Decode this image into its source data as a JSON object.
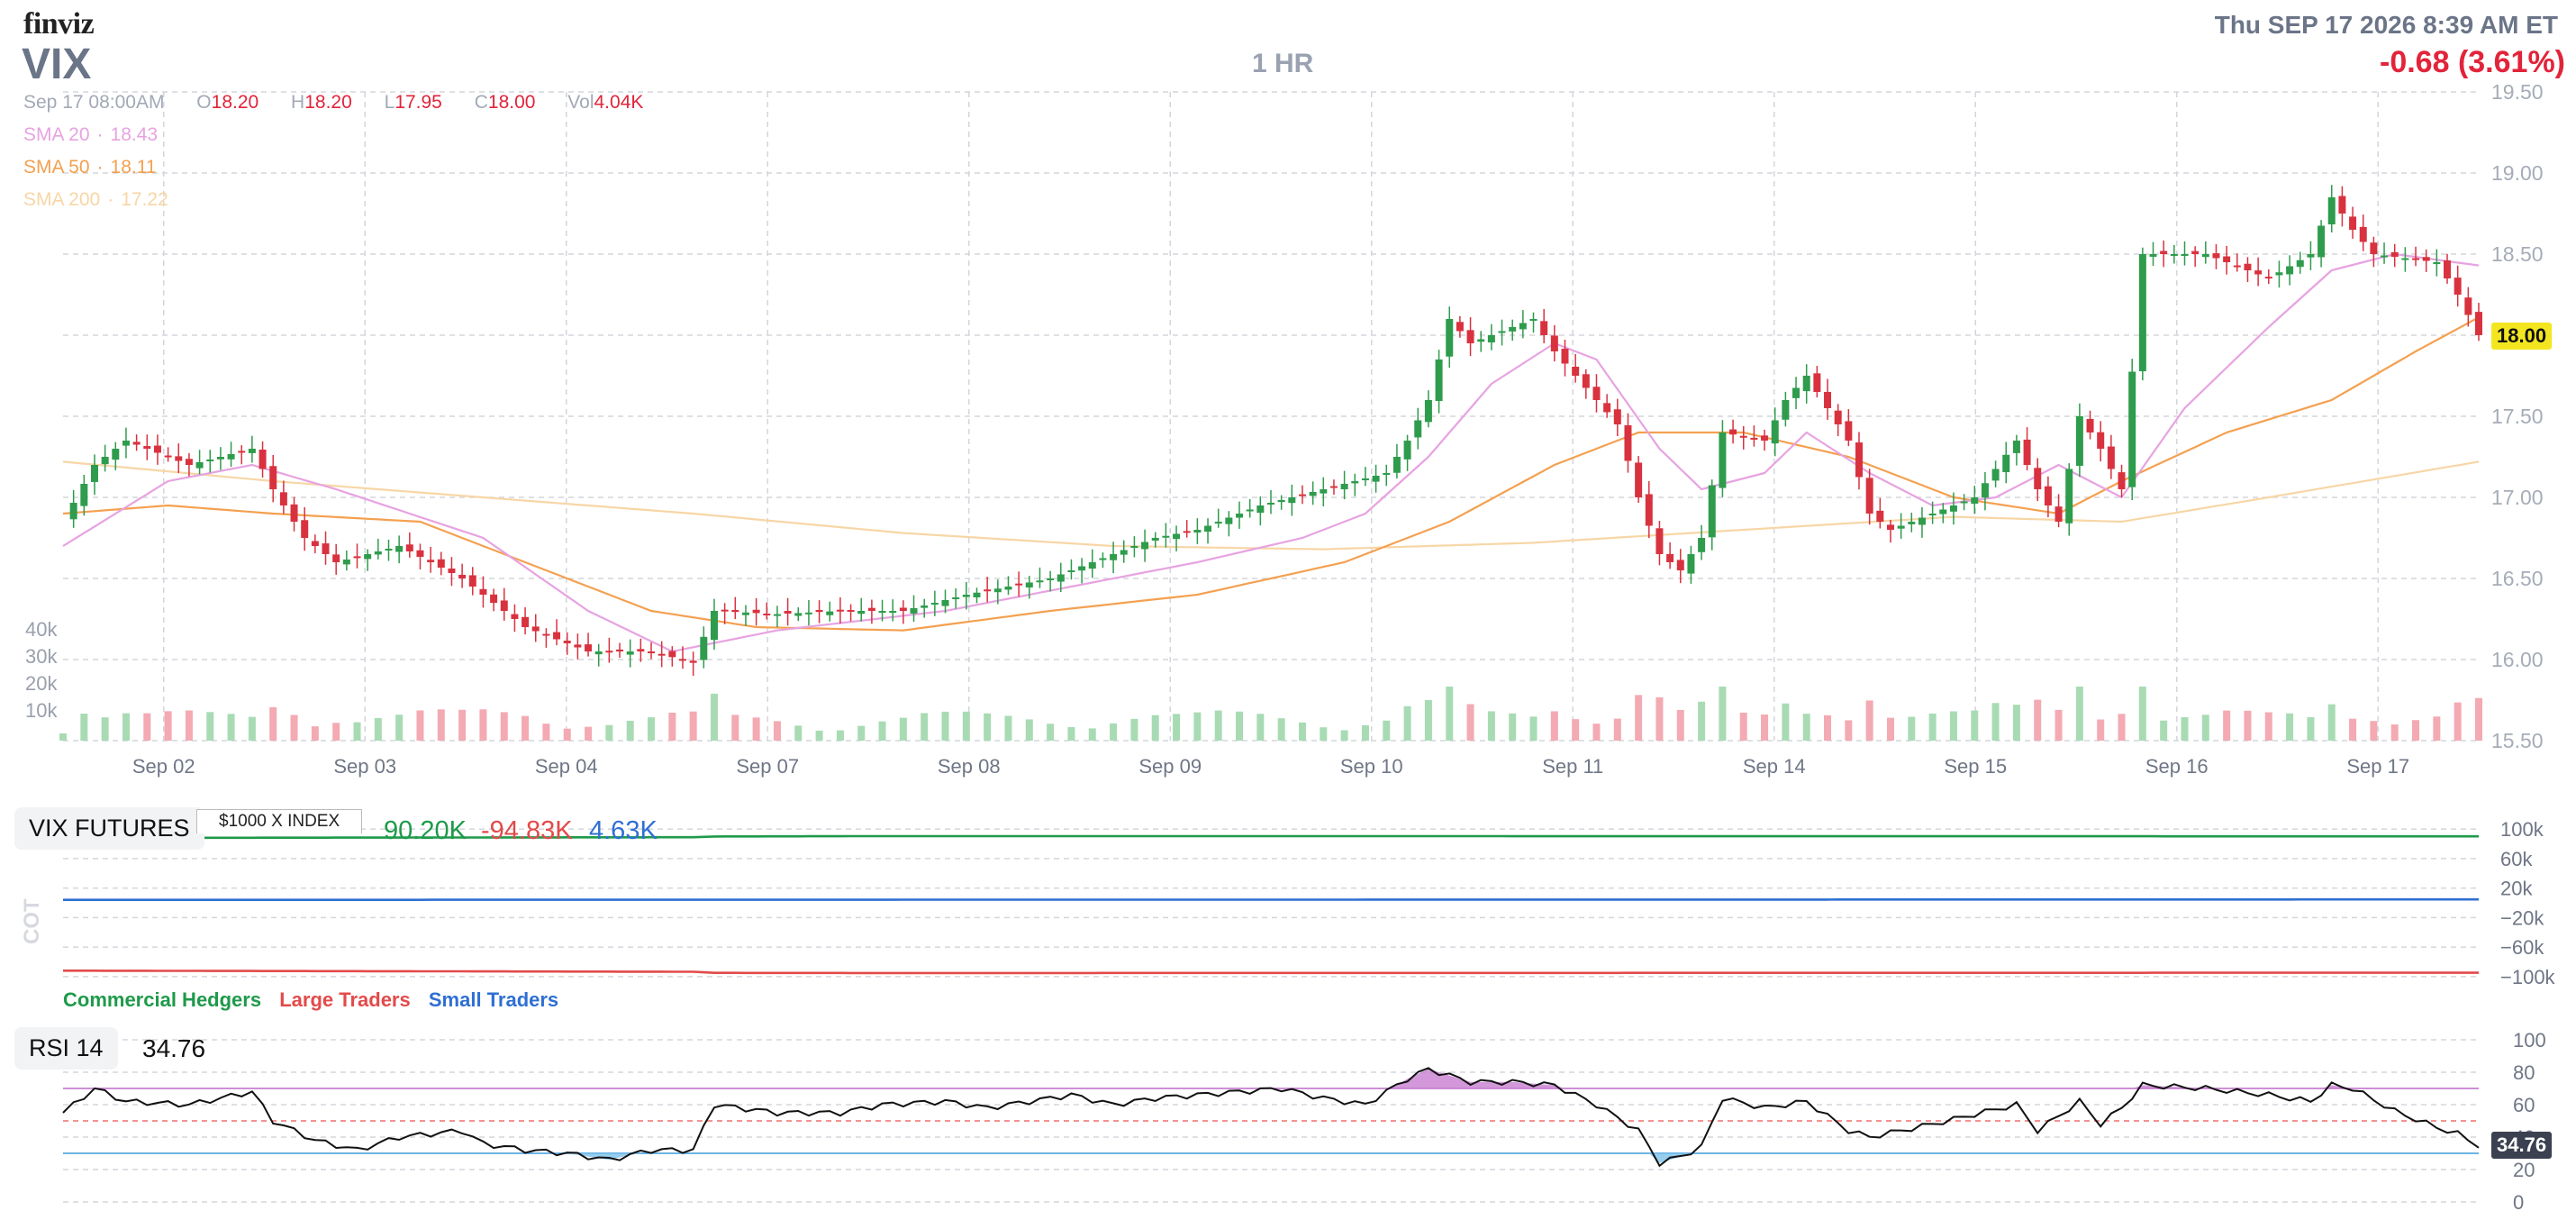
{
  "header": {
    "logo": "finviz",
    "ticker": "VIX",
    "timeframe": "1 HR",
    "datetime": "Thu SEP 17 2026 8:39 AM ET",
    "change": "-0.68 (3.61%)"
  },
  "ohlc": {
    "date": "Sep 17 08:00AM",
    "open_label": "O",
    "open": "18.20",
    "high_label": "H",
    "high": "18.20",
    "low_label": "L",
    "low": "17.95",
    "close_label": "C",
    "close": "18.00",
    "vol_label": "Vol",
    "vol": "4.04K"
  },
  "sma": [
    {
      "label": "SMA 20",
      "value": "18.43",
      "color": "#e7a3e1"
    },
    {
      "label": "SMA 50",
      "value": "18.11",
      "color": "#f4a050"
    },
    {
      "label": "SMA 200",
      "value": "17.22",
      "color": "#f7d6a6"
    }
  ],
  "colors": {
    "up": "#2e9c4c",
    "down": "#d9323f",
    "grid": "#d3d6dc",
    "axis_text": "#a6acb8",
    "last_price_bg": "#f3e620"
  },
  "chart_data": [
    {
      "type": "candlestick",
      "title": "VIX",
      "x_labels": [
        "Sep 02",
        "Sep 03",
        "Sep 04",
        "Sep 07",
        "Sep 08",
        "Sep 09",
        "Sep 10",
        "Sep 11",
        "Sep 14",
        "Sep 15",
        "Sep 16",
        "Sep 17"
      ],
      "y_ticks": [
        "19.50",
        "19.00",
        "18.50",
        "18.00",
        "17.50",
        "17.00",
        "16.50",
        "16.00",
        "15.50"
      ],
      "ylim": [
        15.5,
        19.5
      ],
      "last_price": "18.00",
      "close_path": [
        [
          0,
          16.85
        ],
        [
          3,
          17.2
        ],
        [
          6,
          17.35
        ],
        [
          12,
          17.2
        ],
        [
          18,
          17.3
        ],
        [
          20,
          17.05
        ],
        [
          23,
          16.75
        ],
        [
          26,
          16.6
        ],
        [
          32,
          16.7
        ],
        [
          38,
          16.5
        ],
        [
          44,
          16.2
        ],
        [
          50,
          16.05
        ],
        [
          56,
          16.05
        ],
        [
          60,
          15.98
        ],
        [
          62,
          16.3
        ],
        [
          68,
          16.28
        ],
        [
          74,
          16.3
        ],
        [
          80,
          16.3
        ],
        [
          86,
          16.4
        ],
        [
          90,
          16.45
        ],
        [
          94,
          16.5
        ],
        [
          100,
          16.65
        ],
        [
          104,
          16.75
        ],
        [
          108,
          16.8
        ],
        [
          114,
          16.95
        ],
        [
          120,
          17.05
        ],
        [
          126,
          17.15
        ],
        [
          128,
          17.35
        ],
        [
          130,
          17.6
        ],
        [
          132,
          18.1
        ],
        [
          134,
          17.95
        ],
        [
          140,
          18.1
        ],
        [
          142,
          17.9
        ],
        [
          144,
          17.75
        ],
        [
          148,
          17.45
        ],
        [
          150,
          17.0
        ],
        [
          152,
          16.65
        ],
        [
          154,
          16.55
        ],
        [
          156,
          16.75
        ],
        [
          158,
          17.4
        ],
        [
          162,
          17.35
        ],
        [
          164,
          17.6
        ],
        [
          166,
          17.75
        ],
        [
          168,
          17.55
        ],
        [
          170,
          17.35
        ],
        [
          172,
          16.9
        ],
        [
          174,
          16.8
        ],
        [
          178,
          16.9
        ],
        [
          182,
          17.0
        ],
        [
          186,
          17.35
        ],
        [
          188,
          17.05
        ],
        [
          190,
          16.85
        ],
        [
          192,
          17.5
        ],
        [
          194,
          17.3
        ],
        [
          196,
          17.05
        ],
        [
          198,
          18.5
        ],
        [
          204,
          18.5
        ],
        [
          210,
          18.35
        ],
        [
          214,
          18.5
        ],
        [
          216,
          18.85
        ],
        [
          218,
          18.65
        ],
        [
          220,
          18.5
        ],
        [
          226,
          18.45
        ],
        [
          228,
          18.25
        ],
        [
          230,
          18.0
        ]
      ],
      "sma20": [
        [
          0,
          16.7
        ],
        [
          10,
          17.1
        ],
        [
          18,
          17.2
        ],
        [
          26,
          17.05
        ],
        [
          40,
          16.75
        ],
        [
          50,
          16.3
        ],
        [
          58,
          16.05
        ],
        [
          68,
          16.18
        ],
        [
          84,
          16.3
        ],
        [
          96,
          16.45
        ],
        [
          108,
          16.6
        ],
        [
          118,
          16.75
        ],
        [
          124,
          16.9
        ],
        [
          130,
          17.25
        ],
        [
          136,
          17.7
        ],
        [
          142,
          17.95
        ],
        [
          146,
          17.85
        ],
        [
          152,
          17.3
        ],
        [
          156,
          17.05
        ],
        [
          162,
          17.15
        ],
        [
          166,
          17.4
        ],
        [
          172,
          17.15
        ],
        [
          178,
          16.95
        ],
        [
          184,
          17.0
        ],
        [
          190,
          17.2
        ],
        [
          196,
          17.0
        ],
        [
          202,
          17.55
        ],
        [
          210,
          18.05
        ],
        [
          216,
          18.4
        ],
        [
          222,
          18.5
        ],
        [
          230,
          18.43
        ]
      ],
      "sma50": [
        [
          0,
          16.9
        ],
        [
          10,
          16.95
        ],
        [
          20,
          16.9
        ],
        [
          34,
          16.85
        ],
        [
          44,
          16.6
        ],
        [
          56,
          16.3
        ],
        [
          66,
          16.2
        ],
        [
          80,
          16.18
        ],
        [
          94,
          16.3
        ],
        [
          108,
          16.4
        ],
        [
          122,
          16.6
        ],
        [
          132,
          16.85
        ],
        [
          142,
          17.2
        ],
        [
          150,
          17.4
        ],
        [
          160,
          17.4
        ],
        [
          170,
          17.25
        ],
        [
          180,
          17.0
        ],
        [
          190,
          16.9
        ],
        [
          196,
          17.1
        ],
        [
          206,
          17.4
        ],
        [
          216,
          17.6
        ],
        [
          224,
          17.9
        ],
        [
          230,
          18.11
        ]
      ],
      "sma200": [
        [
          0,
          17.22
        ],
        [
          20,
          17.1
        ],
        [
          40,
          17.0
        ],
        [
          60,
          16.9
        ],
        [
          80,
          16.78
        ],
        [
          100,
          16.7
        ],
        [
          120,
          16.68
        ],
        [
          140,
          16.72
        ],
        [
          160,
          16.8
        ],
        [
          180,
          16.88
        ],
        [
          196,
          16.85
        ],
        [
          210,
          17.0
        ],
        [
          230,
          17.22
        ]
      ],
      "volume_ticks": [
        "40k",
        "30k",
        "20k",
        "10k"
      ]
    },
    {
      "type": "line",
      "title": "VIX FUTURES",
      "index_label": "$1000 X INDEX",
      "y_ticks": [
        "100k",
        "60k",
        "20k",
        "−20k",
        "−60k",
        "−100k"
      ],
      "ylim": [
        -110000,
        110000
      ],
      "side_label": "COT",
      "series": [
        {
          "name": "Commercial Hedgers",
          "last": "90.20K",
          "color": "#1e9a4a",
          "values": [
            [
              0,
              88000
            ],
            [
              60,
              89000
            ],
            [
              62,
              90000
            ],
            [
              78,
              90500
            ],
            [
              230,
              90200
            ]
          ]
        },
        {
          "name": "Large Traders",
          "last": "-94.83K",
          "color": "#e34a4a",
          "values": [
            [
              0,
              -92000
            ],
            [
              60,
              -93500
            ],
            [
              62,
              -95000
            ],
            [
              78,
              -95200
            ],
            [
              230,
              -94830
            ]
          ]
        },
        {
          "name": "Small Traders",
          "last": "4.63K",
          "color": "#2f6fd3",
          "values": [
            [
              0,
              4000
            ],
            [
              230,
              4630
            ]
          ]
        }
      ]
    },
    {
      "type": "line",
      "title": "RSI 14",
      "value": "34.76",
      "y_ticks": [
        "100",
        "80",
        "60",
        "40",
        "20",
        "0"
      ],
      "ylim": [
        0,
        100
      ],
      "levels": [
        70,
        50,
        30
      ],
      "values": [
        [
          0,
          55
        ],
        [
          3,
          70
        ],
        [
          6,
          62
        ],
        [
          12,
          60
        ],
        [
          18,
          68
        ],
        [
          20,
          50
        ],
        [
          24,
          38
        ],
        [
          28,
          32
        ],
        [
          32,
          40
        ],
        [
          38,
          44
        ],
        [
          40,
          36
        ],
        [
          44,
          32
        ],
        [
          48,
          30
        ],
        [
          52,
          26
        ],
        [
          56,
          32
        ],
        [
          60,
          32
        ],
        [
          62,
          60
        ],
        [
          68,
          55
        ],
        [
          74,
          55
        ],
        [
          78,
          60
        ],
        [
          84,
          62
        ],
        [
          88,
          58
        ],
        [
          92,
          62
        ],
        [
          96,
          66
        ],
        [
          100,
          60
        ],
        [
          104,
          64
        ],
        [
          108,
          66
        ],
        [
          112,
          68
        ],
        [
          116,
          70
        ],
        [
          120,
          64
        ],
        [
          124,
          60
        ],
        [
          128,
          76
        ],
        [
          130,
          82
        ],
        [
          134,
          74
        ],
        [
          138,
          74
        ],
        [
          142,
          72
        ],
        [
          146,
          60
        ],
        [
          150,
          44
        ],
        [
          152,
          24
        ],
        [
          154,
          28
        ],
        [
          156,
          34
        ],
        [
          158,
          64
        ],
        [
          162,
          58
        ],
        [
          166,
          62
        ],
        [
          170,
          44
        ],
        [
          172,
          40
        ],
        [
          178,
          48
        ],
        [
          182,
          54
        ],
        [
          186,
          60
        ],
        [
          188,
          44
        ],
        [
          192,
          62
        ],
        [
          194,
          48
        ],
        [
          196,
          58
        ],
        [
          198,
          72
        ],
        [
          204,
          70
        ],
        [
          210,
          66
        ],
        [
          214,
          62
        ],
        [
          216,
          72
        ],
        [
          218,
          70
        ],
        [
          222,
          56
        ],
        [
          226,
          46
        ],
        [
          228,
          42
        ],
        [
          230,
          34.76
        ]
      ]
    }
  ],
  "cot_legend": {
    "commercial": "Commercial Hedgers",
    "large": "Large Traders",
    "small": "Small Traders"
  }
}
